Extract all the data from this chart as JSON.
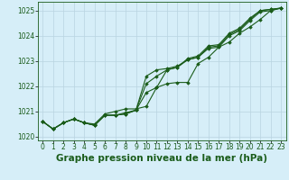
{
  "title": "Graphe pression niveau de la mer (hPa)",
  "x_hours": [
    0,
    1,
    2,
    3,
    4,
    5,
    6,
    7,
    8,
    9,
    10,
    11,
    12,
    13,
    14,
    15,
    16,
    17,
    18,
    19,
    20,
    21,
    22,
    23
  ],
  "series1": [
    1020.6,
    1020.3,
    1020.55,
    1020.7,
    1020.55,
    1020.45,
    1020.85,
    1020.85,
    1020.9,
    1021.05,
    1022.4,
    1022.65,
    1022.7,
    1022.8,
    1023.05,
    1023.15,
    1023.5,
    1023.55,
    1024.0,
    1024.2,
    1024.6,
    1024.95,
    1025.0,
    1025.1
  ],
  "series2": [
    1020.6,
    1020.3,
    1020.55,
    1020.7,
    1020.55,
    1020.45,
    1020.85,
    1020.85,
    1020.9,
    1021.05,
    1022.1,
    1022.4,
    1022.65,
    1022.75,
    1023.05,
    1023.15,
    1023.55,
    1023.6,
    1024.05,
    1024.25,
    1024.65,
    1025.0,
    1025.05,
    1025.1
  ],
  "series3": [
    1020.6,
    1020.3,
    1020.55,
    1020.7,
    1020.55,
    1020.45,
    1020.85,
    1020.85,
    1020.95,
    1021.05,
    1021.75,
    1021.95,
    1022.65,
    1022.75,
    1023.1,
    1023.2,
    1023.6,
    1023.65,
    1024.1,
    1024.3,
    1024.7,
    1025.0,
    1025.05,
    1025.1
  ],
  "series4": [
    1020.6,
    1020.3,
    1020.55,
    1020.7,
    1020.55,
    1020.5,
    1020.9,
    1021.0,
    1021.1,
    1021.1,
    1021.2,
    1021.95,
    1022.1,
    1022.15,
    1022.15,
    1022.9,
    1023.15,
    1023.55,
    1023.75,
    1024.1,
    1024.35,
    1024.65,
    1025.0,
    1025.1
  ],
  "ylim": [
    1019.85,
    1025.35
  ],
  "yticks": [
    1020,
    1021,
    1022,
    1023,
    1024,
    1025
  ],
  "bg_color": "#d6eef8",
  "line_color": "#1a5c1a",
  "grid_color": "#b8d4e0",
  "title_color": "#1a5c1a",
  "title_fontsize": 7.5,
  "tick_fontsize": 5.5
}
